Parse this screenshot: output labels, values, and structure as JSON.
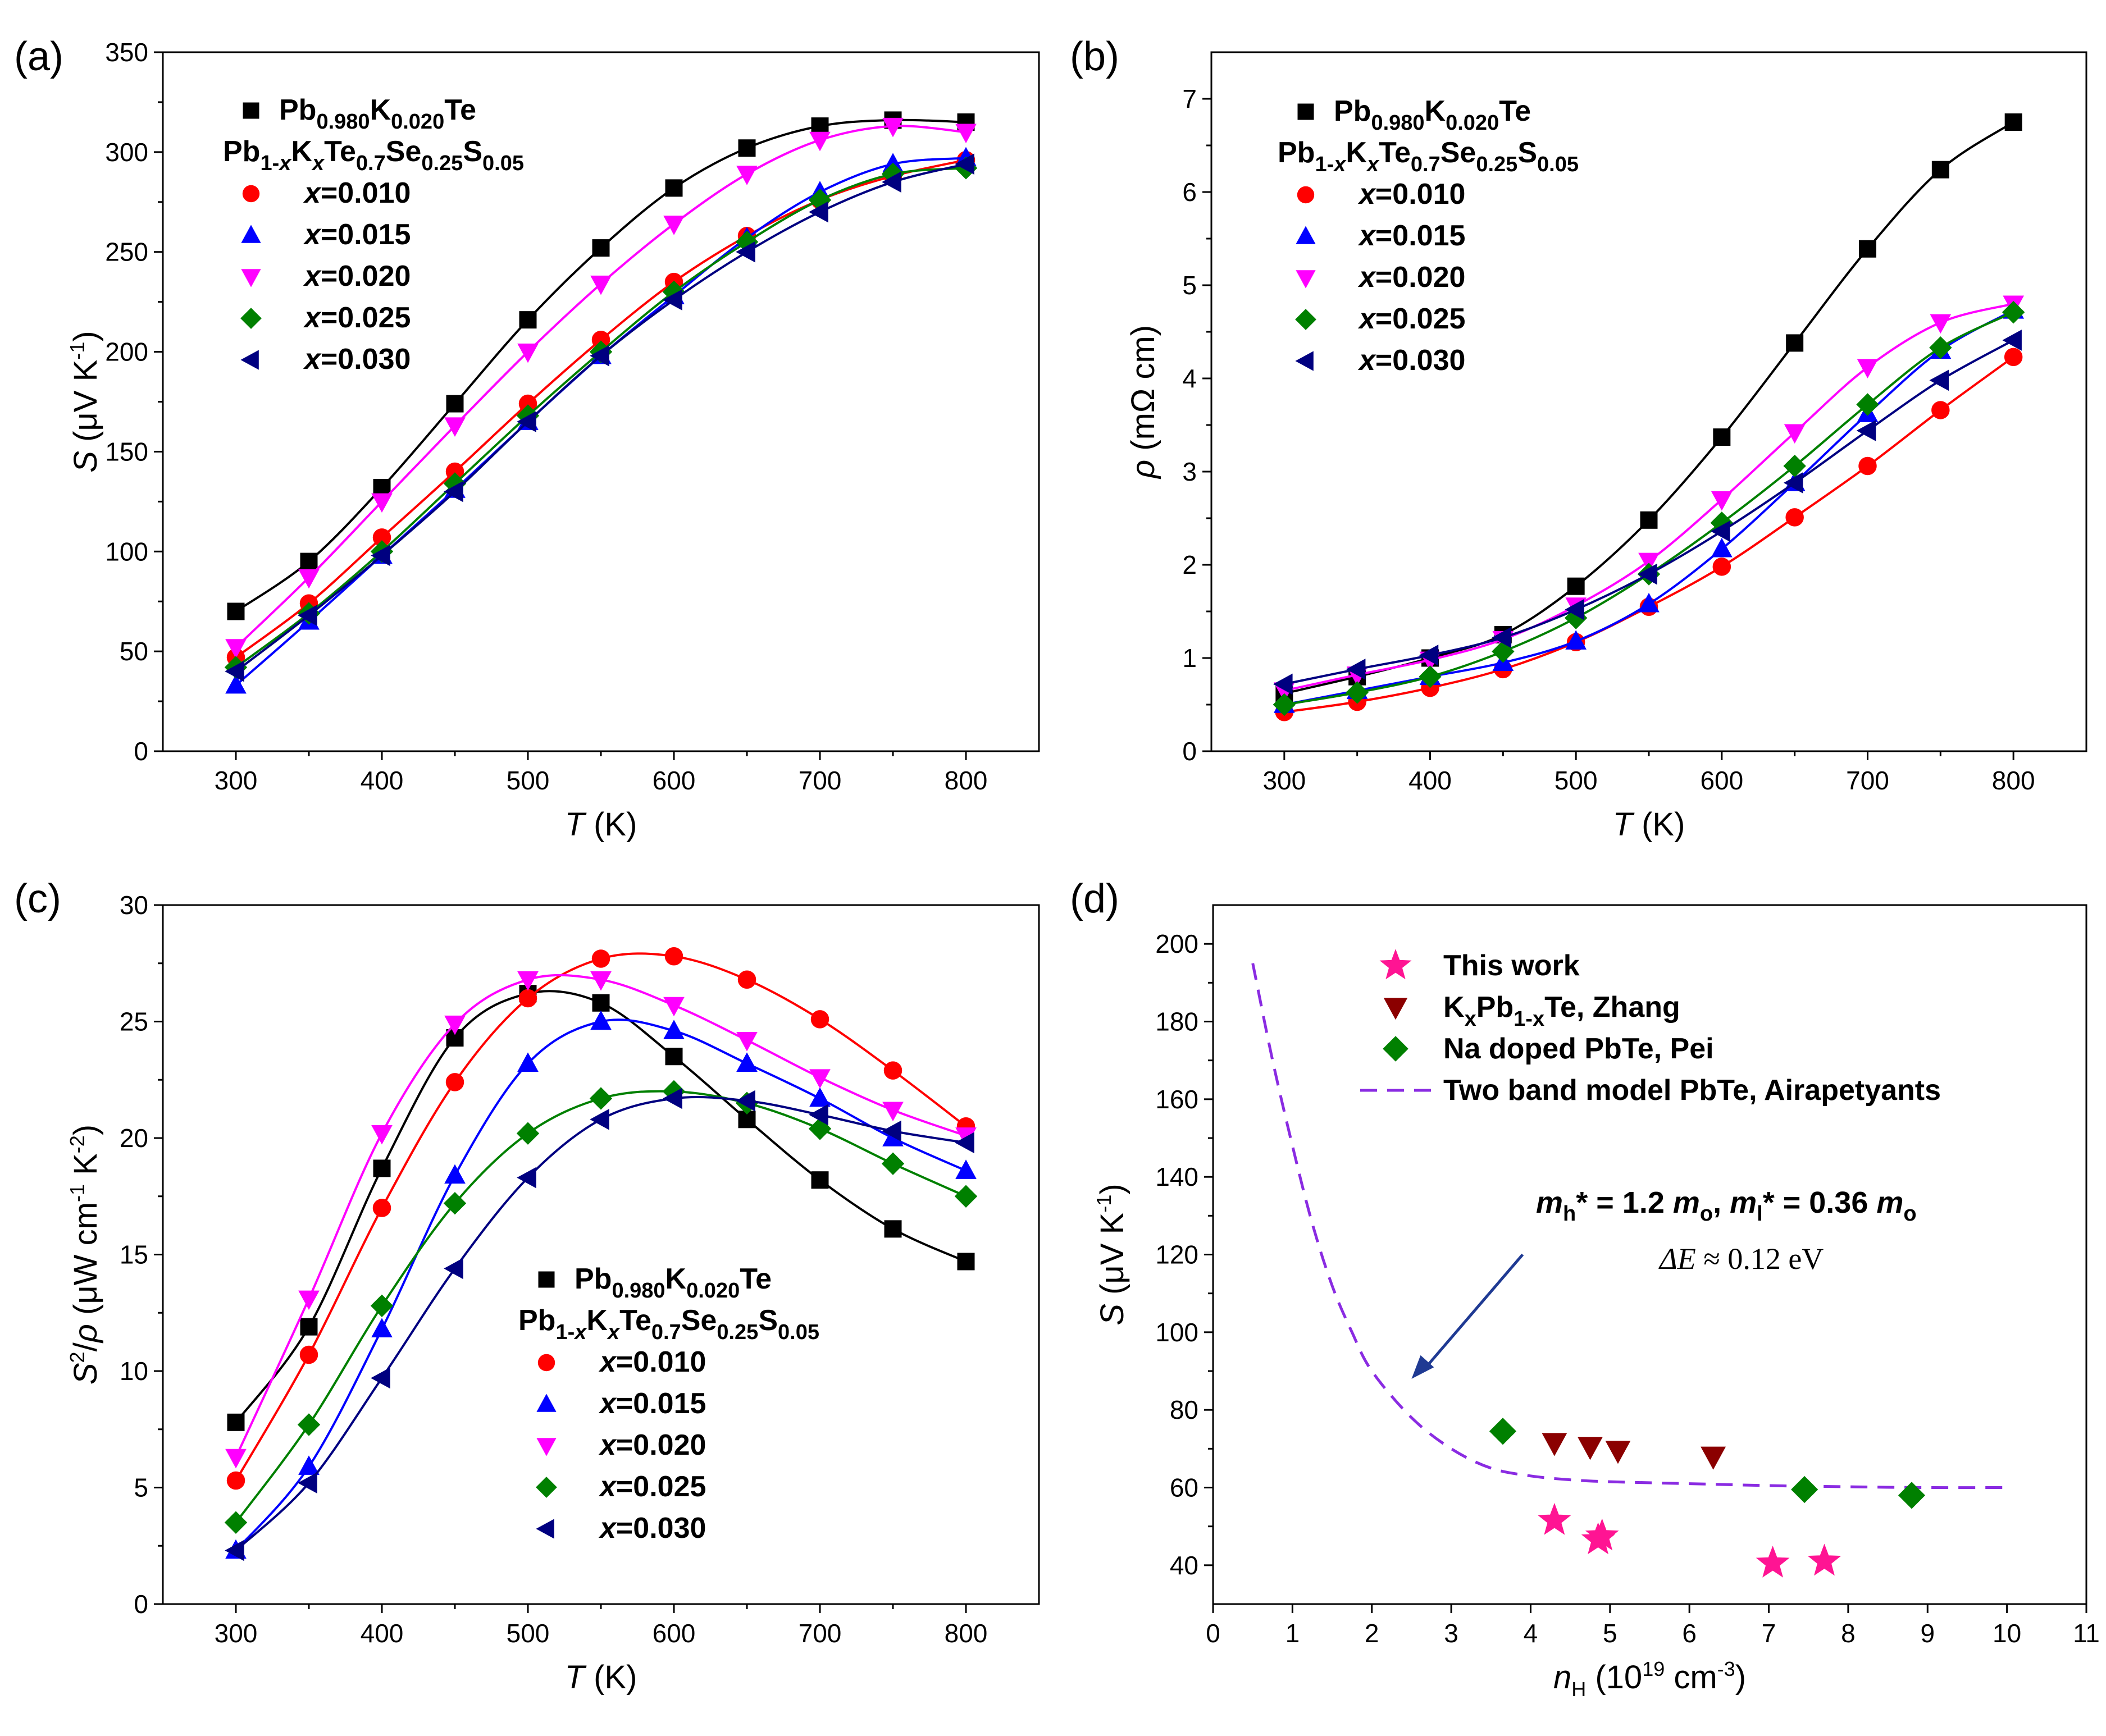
{
  "chart_data": [
    {
      "type": "scatter",
      "panel_label": "(a)",
      "xlabel": "T (K)",
      "ylabel": "S (μV K-1)",
      "xlim": [
        250,
        850
      ],
      "ylim": [
        0,
        350
      ],
      "xticks": [
        "300",
        "400",
        "500",
        "600",
        "700",
        "800"
      ],
      "yticks": [
        "0",
        "50",
        "100",
        "150",
        "200",
        "250",
        "300",
        "350"
      ],
      "legend_header": "Pb1-xKxTe0.7Se0.25S0.05",
      "x": [
        300,
        350,
        400,
        450,
        500,
        550,
        600,
        650,
        700,
        750,
        800
      ],
      "series": [
        {
          "name": "Pb0.980K0.020Te",
          "label": "Pb0.980K0.020Te",
          "color": "#000000",
          "marker": "square",
          "values": [
            70,
            95,
            132,
            174,
            216,
            252,
            282,
            302,
            313,
            316,
            315
          ]
        },
        {
          "name": "x=0.010",
          "label": "x=0.010",
          "color": "#ff0000",
          "marker": "circle",
          "values": [
            47,
            74,
            107,
            140,
            174,
            206,
            235,
            258,
            276,
            288,
            296
          ]
        },
        {
          "name": "x=0.015",
          "label": "x=0.015",
          "color": "#0000ff",
          "marker": "triangle-up",
          "values": [
            33,
            65,
            98,
            131,
            165,
            198,
            228,
            257,
            280,
            294,
            297
          ]
        },
        {
          "name": "x=0.020",
          "label": "x=0.020",
          "color": "#ff00ff",
          "marker": "triangle-down",
          "values": [
            52,
            87,
            125,
            163,
            200,
            234,
            264,
            289,
            306,
            313,
            310
          ]
        },
        {
          "name": "x=0.025",
          "label": "x=0.025",
          "color": "#008000",
          "marker": "diamond",
          "values": [
            42,
            69,
            100,
            134,
            168,
            200,
            230,
            255,
            276,
            289,
            292
          ]
        },
        {
          "name": "x=0.030",
          "label": "x=0.030",
          "color": "#000080",
          "marker": "triangle-left",
          "values": [
            40,
            68,
            98,
            130,
            165,
            198,
            226,
            250,
            270,
            285,
            294
          ]
        }
      ]
    },
    {
      "type": "scatter",
      "panel_label": "(b)",
      "xlabel": "T (K)",
      "ylabel": "ρ (mΩ cm)",
      "xlim": [
        250,
        850
      ],
      "ylim": [
        0,
        7.5
      ],
      "xticks": [
        "300",
        "400",
        "500",
        "600",
        "700",
        "800"
      ],
      "yticks": [
        "0",
        "1",
        "2",
        "3",
        "4",
        "5",
        "6",
        "7"
      ],
      "legend_header": "Pb1-xKxTe0.7Se0.25S0.05",
      "x": [
        300,
        350,
        400,
        450,
        500,
        550,
        600,
        650,
        700,
        750,
        800
      ],
      "series": [
        {
          "name": "Pb0.980K0.020Te",
          "label": "Pb0.980K0.020Te",
          "color": "#000000",
          "marker": "square",
          "values": [
            0.62,
            0.8,
            1.0,
            1.25,
            1.77,
            2.48,
            3.37,
            4.38,
            5.39,
            6.24,
            6.75
          ]
        },
        {
          "name": "x=0.010",
          "label": "x=0.010",
          "color": "#ff0000",
          "marker": "circle",
          "values": [
            0.42,
            0.53,
            0.68,
            0.88,
            1.17,
            1.55,
            1.98,
            2.51,
            3.06,
            3.66,
            4.23
          ]
        },
        {
          "name": "x=0.015",
          "label": "x=0.015",
          "color": "#0000ff",
          "marker": "triangle-up",
          "values": [
            0.5,
            0.65,
            0.8,
            0.95,
            1.18,
            1.58,
            2.17,
            2.88,
            3.62,
            4.3,
            4.73
          ]
        },
        {
          "name": "x=0.020",
          "label": "x=0.020",
          "color": "#ff00ff",
          "marker": "triangle-down",
          "values": [
            0.65,
            0.82,
            0.98,
            1.2,
            1.56,
            2.04,
            2.7,
            3.42,
            4.12,
            4.6,
            4.8
          ]
        },
        {
          "name": "x=0.025",
          "label": "x=0.025",
          "color": "#008000",
          "marker": "diamond",
          "values": [
            0.5,
            0.63,
            0.8,
            1.07,
            1.43,
            1.9,
            2.45,
            3.06,
            3.72,
            4.33,
            4.71
          ]
        },
        {
          "name": "x=0.030",
          "label": "x=0.030",
          "color": "#000080",
          "marker": "triangle-left",
          "values": [
            0.72,
            0.88,
            1.03,
            1.22,
            1.52,
            1.9,
            2.36,
            2.88,
            3.44,
            3.98,
            4.41
          ]
        }
      ]
    },
    {
      "type": "scatter",
      "panel_label": "(c)",
      "xlabel": "T (K)",
      "ylabel": "S2/ρ (μW cm-1 K-2)",
      "xlim": [
        250,
        850
      ],
      "ylim": [
        0,
        30
      ],
      "xticks": [
        "300",
        "400",
        "500",
        "600",
        "700",
        "800"
      ],
      "yticks": [
        "0",
        "5",
        "10",
        "15",
        "20",
        "25",
        "30"
      ],
      "legend_header": "Pb1-xKxTe0.7Se0.25S0.05",
      "x": [
        300,
        350,
        400,
        450,
        500,
        550,
        600,
        650,
        700,
        750,
        800
      ],
      "series": [
        {
          "name": "Pb0.980K0.020Te",
          "label": "Pb0.980K0.020Te",
          "color": "#000000",
          "marker": "square",
          "values": [
            7.8,
            11.9,
            18.7,
            24.3,
            26.2,
            25.8,
            23.5,
            20.8,
            18.2,
            16.1,
            14.7
          ]
        },
        {
          "name": "x=0.010",
          "label": "x=0.010",
          "color": "#ff0000",
          "marker": "circle",
          "values": [
            5.3,
            10.7,
            17.0,
            22.4,
            26.0,
            27.7,
            27.8,
            26.8,
            25.1,
            22.9,
            20.5
          ]
        },
        {
          "name": "x=0.015",
          "label": "x=0.015",
          "color": "#0000ff",
          "marker": "triangle-up",
          "values": [
            2.3,
            5.9,
            11.8,
            18.4,
            23.2,
            25.0,
            24.6,
            23.2,
            21.7,
            20.0,
            18.6
          ]
        },
        {
          "name": "x=0.020",
          "label": "x=0.020",
          "color": "#ff00ff",
          "marker": "triangle-down",
          "values": [
            6.3,
            13.1,
            20.2,
            24.9,
            26.8,
            26.8,
            25.7,
            24.2,
            22.6,
            21.2,
            20.1
          ]
        },
        {
          "name": "x=0.025",
          "label": "x=0.025",
          "color": "#008000",
          "marker": "diamond",
          "values": [
            3.5,
            7.7,
            12.8,
            17.2,
            20.2,
            21.7,
            22.0,
            21.5,
            20.4,
            18.9,
            17.5
          ]
        },
        {
          "name": "x=0.030",
          "label": "x=0.030",
          "color": "#000080",
          "marker": "triangle-left",
          "values": [
            2.3,
            5.2,
            9.7,
            14.4,
            18.3,
            20.8,
            21.7,
            21.6,
            21.0,
            20.3,
            19.8
          ]
        }
      ]
    },
    {
      "type": "scatter",
      "panel_label": "(d)",
      "xlabel": "nH (1019 cm-3)",
      "ylabel": "S (μV K-1)",
      "xlim": [
        0,
        11
      ],
      "ylim": [
        30,
        210
      ],
      "xticks": [
        "0",
        "1",
        "2",
        "3",
        "4",
        "5",
        "6",
        "7",
        "8",
        "9",
        "10",
        "11"
      ],
      "yticks": [
        "40",
        "60",
        "80",
        "100",
        "120",
        "140",
        "160",
        "180",
        "200"
      ],
      "annotation_mass": "mh* = 1.2 mo, ml* = 0.36 mo",
      "annotation_gap": "ΔE ≈ 0.12 eV",
      "arrow": {
        "from": [
          3.9,
          120
        ],
        "to": [
          2.5,
          88
        ]
      },
      "series": [
        {
          "name": "This work",
          "color": "#ff1493",
          "marker": "star",
          "x": [
            4.3,
            4.85,
            4.9,
            7.05,
            7.7
          ],
          "y": [
            51.5,
            46.5,
            47.5,
            40.5,
            41
          ]
        },
        {
          "name": "KxPb1-xTe, Zhang",
          "color": "#8b0000",
          "marker": "triangle-down",
          "x": [
            4.3,
            4.75,
            5.1,
            6.3
          ],
          "y": [
            71.5,
            70.5,
            69.5,
            68
          ]
        },
        {
          "name": "Na doped PbTe, Pei",
          "color": "#008000",
          "marker": "diamond",
          "x": [
            3.65,
            7.45,
            8.8
          ],
          "y": [
            74.5,
            59.5,
            58
          ]
        },
        {
          "name": "Two band model PbTe, Airapetyants",
          "color": "#8a2be2",
          "style": "dashed-line",
          "x": [
            0.5,
            0.75,
            1.0,
            1.25,
            1.5,
            1.75,
            2.0,
            2.5,
            3.0,
            3.5,
            4.0,
            4.5,
            5.0,
            6.0,
            7.0,
            8.0,
            9.0,
            10.0
          ],
          "y": [
            195,
            170,
            148,
            128,
            112,
            100,
            90,
            78,
            70,
            65,
            63,
            62,
            61.5,
            61,
            60.5,
            60.2,
            60,
            60
          ]
        }
      ]
    }
  ]
}
